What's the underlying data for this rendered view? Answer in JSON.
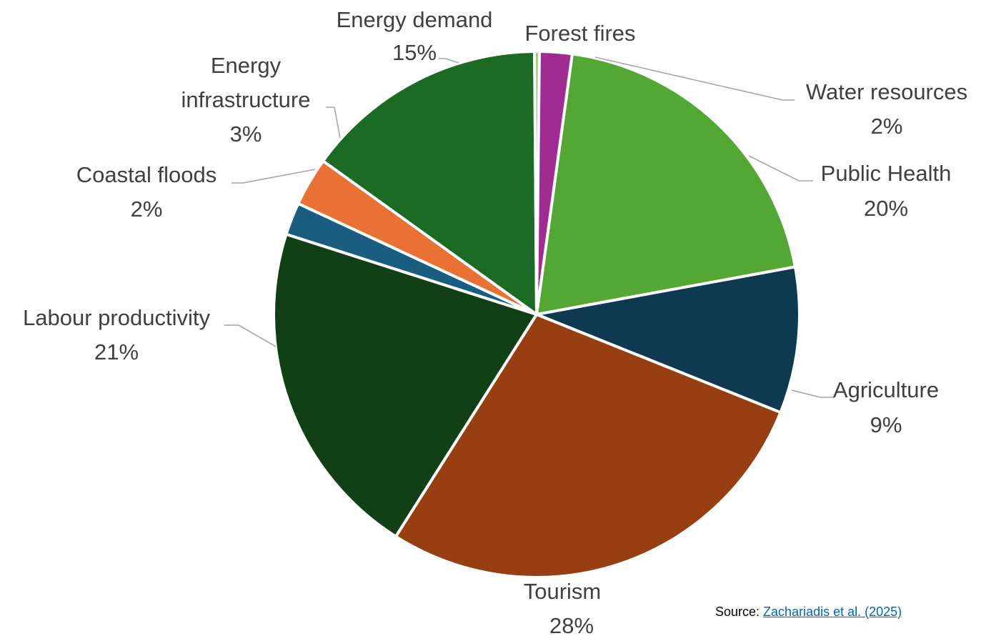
{
  "chart_data": {
    "type": "pie",
    "title": "",
    "slices": [
      {
        "label": "Public Health",
        "value": 20,
        "pct_label": "20%",
        "color": "#52a832"
      },
      {
        "label": "Agriculture",
        "value": 9,
        "pct_label": "9%",
        "color": "#0e3a51"
      },
      {
        "label": "Tourism",
        "value": 28,
        "pct_label": "28%",
        "color": "#973f11"
      },
      {
        "label": "Labour productivity",
        "value": 21,
        "pct_label": "21%",
        "color": "#124016"
      },
      {
        "label": "Coastal floods",
        "value": 2,
        "pct_label": "2%",
        "color": "#195e81"
      },
      {
        "label": "Energy infrastructure",
        "value": 3,
        "pct_label": "3%",
        "color": "#e97133"
      },
      {
        "label": "Energy demand",
        "value": 15,
        "pct_label": "15%",
        "color": "#1c6b25"
      },
      {
        "label": "Forest fires",
        "value": 0.3,
        "pct_label": "",
        "color": "#9bc76e"
      },
      {
        "label": "Water resources",
        "value": 2,
        "pct_label": "2%",
        "color": "#a02b93"
      }
    ]
  },
  "source": {
    "prefix": "Source: ",
    "link_text": "Zachariadis et al. (2025)"
  }
}
